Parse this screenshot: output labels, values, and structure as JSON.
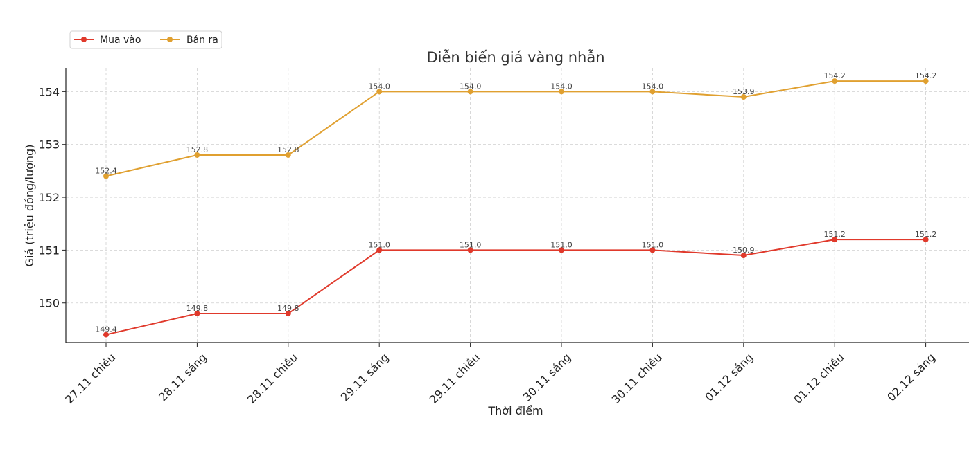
{
  "chart_data": {
    "type": "line",
    "title": "Diễn biến giá vàng nhẫn",
    "xlabel": "Thời điểm",
    "ylabel": "Giá (triệu đồng/lượng)",
    "categories": [
      "27.11 chiều",
      "28.11 sáng",
      "28.11 chiều",
      "29.11 sáng",
      "29.11 chiều",
      "30.11 sáng",
      "30.11 chiều",
      "01.12 sáng",
      "01.12 chiều",
      "02.12 sáng"
    ],
    "ylim": [
      149.25,
      154.45
    ],
    "yticks": [
      150,
      151,
      152,
      153,
      154
    ],
    "grid": true,
    "legend_position": "top-left",
    "series": [
      {
        "name": "Mua vào",
        "color": "#e0392b",
        "values": [
          149.4,
          149.8,
          149.8,
          151.0,
          151.0,
          151.0,
          151.0,
          150.9,
          151.2,
          151.2
        ],
        "labels": [
          "149.4",
          "149.8",
          "149.8",
          "151.0",
          "151.0",
          "151.0",
          "151.0",
          "150.9",
          "151.2",
          "151.2"
        ]
      },
      {
        "name": "Bán ra",
        "color": "#e0a030",
        "values": [
          152.4,
          152.8,
          152.8,
          154.0,
          154.0,
          154.0,
          154.0,
          153.9,
          154.2,
          154.2
        ],
        "labels": [
          "152.4",
          "152.8",
          "152.8",
          "154.0",
          "154.0",
          "154.0",
          "154.0",
          "153.9",
          "154.2",
          "154.2"
        ]
      }
    ]
  }
}
